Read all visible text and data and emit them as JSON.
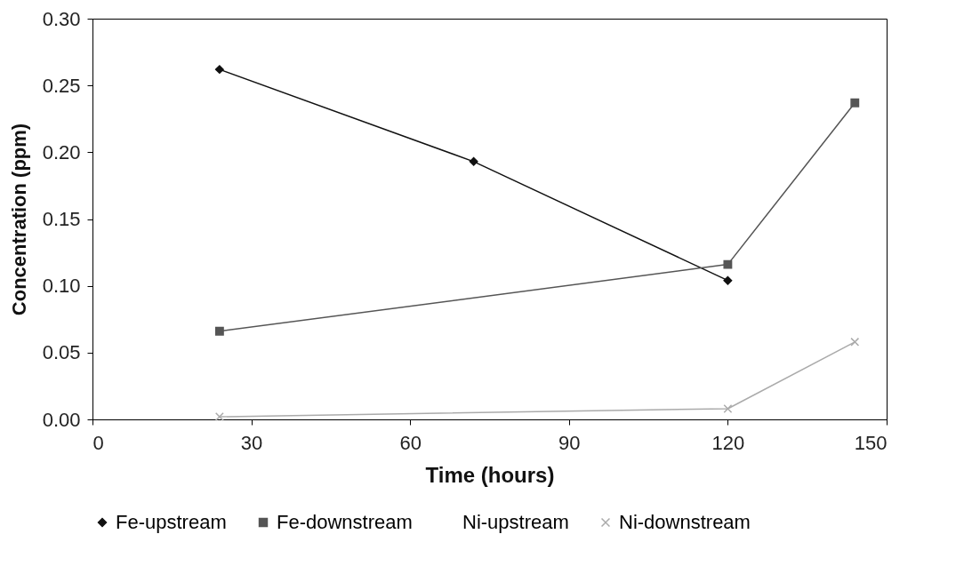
{
  "chart_data": {
    "type": "line",
    "xlabel": "Time (hours)",
    "ylabel": "Concentration (ppm)",
    "series": [
      {
        "name": "Fe-upstream",
        "color": "#111111",
        "marker": "diamond",
        "x": [
          24,
          72,
          120
        ],
        "values": [
          0.262,
          0.193,
          0.104
        ]
      },
      {
        "name": "Fe-downstream",
        "color": "#555555",
        "marker": "square",
        "x": [
          24,
          120,
          144
        ],
        "values": [
          0.066,
          0.116,
          0.237
        ]
      },
      {
        "name": "Ni-upstream",
        "marker": "none"
      },
      {
        "name": "Ni-downstream",
        "color": "#aaaaaa",
        "marker": "cross",
        "x": [
          24,
          120,
          144
        ],
        "values": [
          0.002,
          0.008,
          0.058
        ]
      }
    ],
    "xlim": [
      0,
      150
    ],
    "xticks": [
      0,
      30,
      60,
      90,
      120,
      150
    ],
    "ylim": [
      0,
      0.3
    ],
    "yticks": [
      {
        "value": 0,
        "label": "0.00"
      },
      0.05,
      {
        "value": 0.1,
        "label": "0.10"
      },
      0.15,
      {
        "value": 0.2,
        "label": "0.20"
      },
      0.25,
      {
        "value": 0.3,
        "label": "0.30"
      }
    ],
    "grid": false,
    "legend": "bottom",
    "line_style": "solid"
  }
}
